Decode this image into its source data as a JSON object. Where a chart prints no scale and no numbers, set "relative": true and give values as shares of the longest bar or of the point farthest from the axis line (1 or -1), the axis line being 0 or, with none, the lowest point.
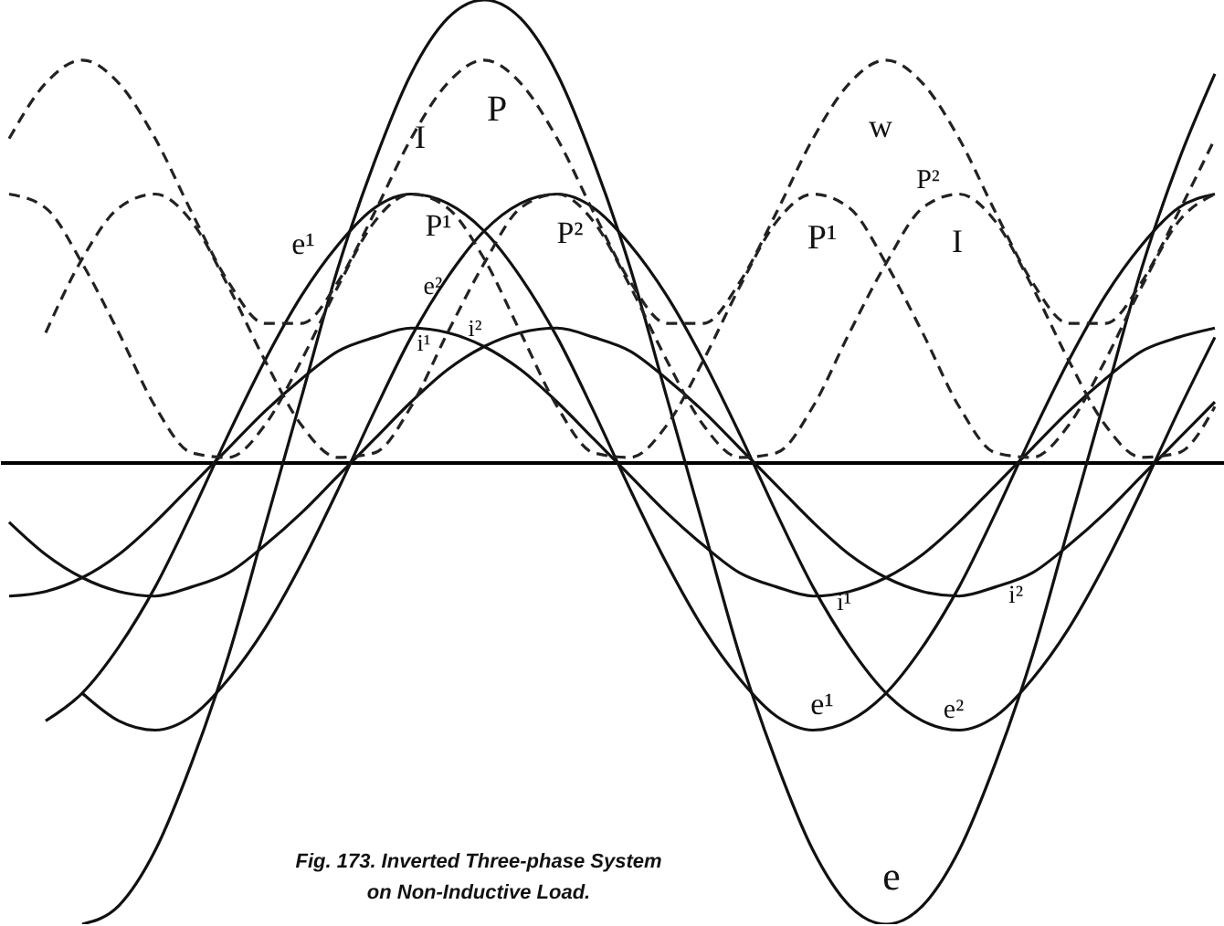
{
  "chart_data": {
    "type": "line",
    "relative": true,
    "tick_labels": false,
    "categories": [
      null,
      null,
      null,
      null,
      null,
      null,
      null,
      null,
      null,
      null,
      null,
      null,
      null,
      null,
      null,
      null,
      null,
      null,
      null,
      null,
      null,
      null,
      null,
      null,
      null,
      null,
      null,
      null,
      null,
      null,
      null,
      null,
      null,
      null
    ],
    "series": [
      {
        "color": "#111111",
        "line_style": "solid",
        "values": [
          null,
          null,
          -1.0,
          -0.96,
          -0.84,
          -0.65,
          -0.42,
          -0.14,
          0.14,
          0.42,
          0.65,
          0.84,
          0.96,
          1.0,
          0.96,
          0.84,
          0.65,
          0.42,
          0.14,
          -0.14,
          -0.42,
          -0.65,
          -0.84,
          -0.96,
          -1.0,
          -0.96,
          -0.84,
          -0.65,
          -0.42,
          -0.14,
          0.14,
          0.42,
          0.65,
          0.84
        ]
      },
      {
        "color": "#111111",
        "line_style": "solid",
        "values": [
          null,
          -0.56,
          -0.5,
          -0.4,
          -0.27,
          -0.11,
          0.06,
          0.22,
          0.36,
          0.47,
          0.55,
          0.58,
          0.56,
          0.5,
          0.4,
          0.27,
          0.11,
          -0.06,
          -0.22,
          -0.36,
          -0.47,
          -0.55,
          -0.58,
          -0.56,
          -0.5,
          -0.4,
          -0.27,
          -0.11,
          0.06,
          0.22,
          0.36,
          0.47,
          0.55,
          0.58
        ]
      },
      {
        "color": "#111111",
        "line_style": "solid",
        "values": [
          null,
          null,
          -0.5,
          -0.56,
          -0.58,
          -0.55,
          -0.47,
          -0.36,
          -0.22,
          -0.06,
          0.11,
          0.27,
          0.4,
          0.5,
          0.56,
          0.58,
          0.55,
          0.47,
          0.36,
          0.22,
          0.06,
          -0.11,
          -0.27,
          -0.4,
          -0.5,
          -0.56,
          -0.58,
          -0.55,
          -0.47,
          -0.36,
          -0.22,
          -0.06,
          0.11,
          0.27
        ]
      },
      {
        "color": "#111111",
        "line_style": "solid",
        "values": [
          -0.29,
          -0.28,
          -0.25,
          -0.2,
          -0.13,
          -0.05,
          0.03,
          0.11,
          0.18,
          0.24,
          0.27,
          0.29,
          0.28,
          0.25,
          0.2,
          0.13,
          0.05,
          -0.03,
          -0.11,
          -0.18,
          -0.24,
          -0.27,
          -0.29,
          -0.28,
          -0.25,
          -0.2,
          -0.13,
          -0.05,
          0.03,
          0.11,
          0.18,
          0.24,
          0.27,
          0.29
        ]
      },
      {
        "color": "#111111",
        "line_style": "solid",
        "values": [
          -0.13,
          -0.2,
          -0.25,
          -0.28,
          -0.29,
          -0.27,
          -0.24,
          -0.18,
          -0.11,
          -0.03,
          0.05,
          0.13,
          0.2,
          0.25,
          0.28,
          0.29,
          0.27,
          0.24,
          0.18,
          0.11,
          0.03,
          -0.05,
          -0.13,
          -0.2,
          -0.25,
          -0.28,
          -0.29,
          -0.27,
          -0.24,
          -0.18,
          -0.11,
          -0.03,
          0.05,
          0.13
        ]
      },
      {
        "color": "#222222",
        "line_style": "dashed",
        "values": [
          0.58,
          0.55,
          0.43,
          0.28,
          0.12,
          0.02,
          0.01,
          0.08,
          0.22,
          0.38,
          0.52,
          0.58,
          0.55,
          0.44,
          0.28,
          0.12,
          0.02,
          0.01,
          0.08,
          0.22,
          0.38,
          0.52,
          0.58,
          0.55,
          0.43,
          0.28,
          0.12,
          0.02,
          0.01,
          0.08,
          0.22,
          0.38,
          0.52,
          0.58
        ]
      },
      {
        "color": "#222222",
        "line_style": "dashed",
        "values": [
          null,
          0.28,
          0.44,
          0.55,
          0.58,
          0.52,
          0.38,
          0.22,
          0.08,
          0.01,
          0.02,
          0.12,
          0.28,
          0.43,
          0.55,
          0.58,
          0.52,
          0.38,
          0.22,
          0.08,
          0.01,
          0.02,
          0.12,
          0.28,
          0.43,
          0.55,
          0.58,
          0.52,
          0.38,
          0.22,
          0.08,
          0.01,
          0.02,
          0.12
        ]
      },
      {
        "color": "#222222",
        "line_style": "dashed",
        "values": [
          0.7,
          0.82,
          0.87,
          0.82,
          0.7,
          0.54,
          0.39,
          0.3,
          0.3,
          0.39,
          0.54,
          0.7,
          0.82,
          0.87,
          0.82,
          0.7,
          0.54,
          0.39,
          0.3,
          0.3,
          0.39,
          0.54,
          0.7,
          0.82,
          0.87,
          0.82,
          0.7,
          0.54,
          0.39,
          0.3,
          0.3,
          0.39,
          0.54,
          0.7
        ]
      }
    ],
    "annotations": [
      "I",
      "P",
      "e¹",
      "P¹",
      "P²",
      "e²",
      "i¹",
      "i²",
      "w",
      "P²",
      "P¹",
      "I",
      "i¹",
      "i²",
      "e¹",
      "e²",
      "e",
      "Fig. 173.  Inverted Three-phase System",
      "on Non-Inductive Load."
    ]
  }
}
